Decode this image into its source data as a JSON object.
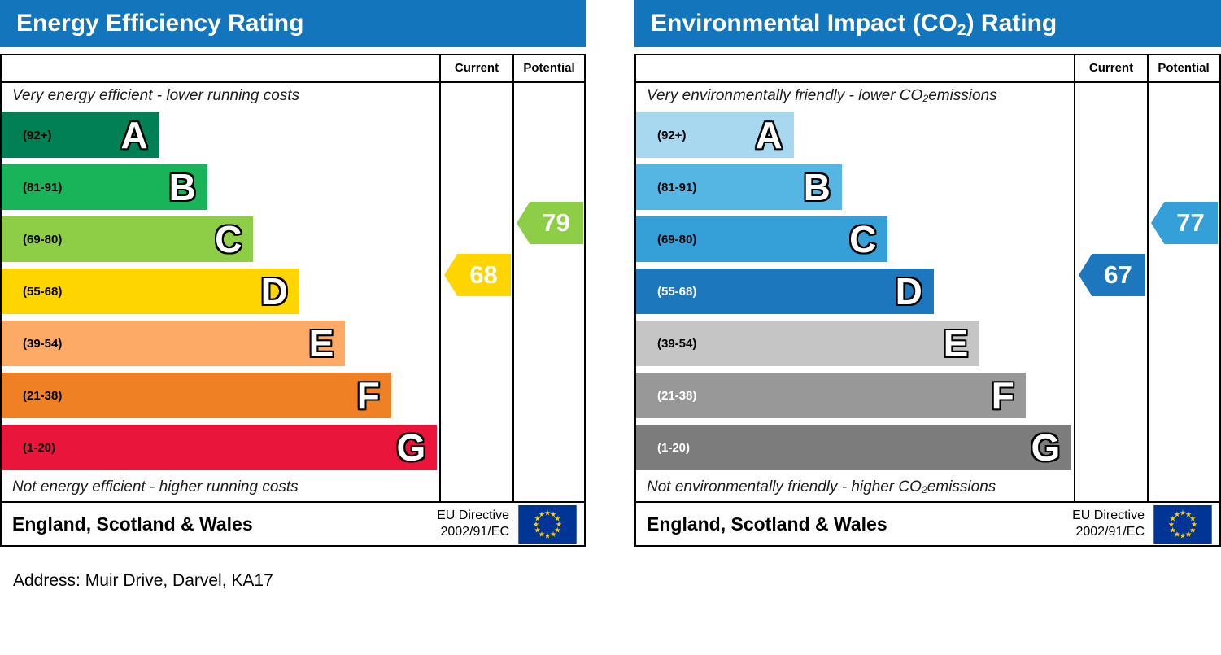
{
  "address": "Address: Muir Drive, Darvel, KA17",
  "charts": [
    {
      "title_parts": [
        "Energy Efficiency Rating",
        "",
        ""
      ],
      "columns": {
        "current": "Current",
        "potential": "Potential"
      },
      "top_caption_parts": [
        "Very energy efficient - lower running costs",
        "",
        ""
      ],
      "bottom_caption_parts": [
        "Not energy efficient - higher running costs",
        "",
        ""
      ],
      "bands": [
        {
          "range": "(92+)",
          "letter": "A",
          "color": "#008054",
          "width_pct": 36,
          "label_color": "#000000"
        },
        {
          "range": "(81-91)",
          "letter": "B",
          "color": "#19b459",
          "width_pct": 47,
          "label_color": "#000000"
        },
        {
          "range": "(69-80)",
          "letter": "C",
          "color": "#8dce46",
          "width_pct": 57.5,
          "label_color": "#000000"
        },
        {
          "range": "(55-68)",
          "letter": "D",
          "color": "#ffd500",
          "width_pct": 68,
          "label_color": "#000000"
        },
        {
          "range": "(39-54)",
          "letter": "E",
          "color": "#fcaa65",
          "width_pct": 78.5,
          "label_color": "#000000"
        },
        {
          "range": "(21-38)",
          "letter": "F",
          "color": "#ef8023",
          "width_pct": 89,
          "label_color": "#000000"
        },
        {
          "range": "(1-20)",
          "letter": "G",
          "color": "#e9153b",
          "width_pct": 99.5,
          "label_color": "#000000"
        }
      ],
      "current": {
        "value": 68,
        "band_index": 3,
        "color": "#ffd500"
      },
      "potential": {
        "value": 79,
        "band_index": 2,
        "color": "#8dce46"
      },
      "footer": {
        "region": "England, Scotland & Wales",
        "directive_line1": "EU Directive",
        "directive_line2": "2002/91/EC"
      }
    },
    {
      "title_parts": [
        "Environmental Impact (CO",
        "2",
        ") Rating"
      ],
      "columns": {
        "current": "Current",
        "potential": "Potential"
      },
      "top_caption_parts": [
        "Very environmentally friendly - lower CO",
        "2",
        " emissions"
      ],
      "bottom_caption_parts": [
        "Not environmentally friendly - higher CO",
        "2",
        " emissions"
      ],
      "bands": [
        {
          "range": "(92+)",
          "letter": "A",
          "color": "#a8d8f0",
          "width_pct": 36,
          "label_color": "#000000"
        },
        {
          "range": "(81-91)",
          "letter": "B",
          "color": "#56b6e3",
          "width_pct": 47,
          "label_color": "#000000"
        },
        {
          "range": "(69-80)",
          "letter": "C",
          "color": "#35a0d8",
          "width_pct": 57.5,
          "label_color": "#000000"
        },
        {
          "range": "(55-68)",
          "letter": "D",
          "color": "#1d77bc",
          "width_pct": 68,
          "label_color": "#ffffff"
        },
        {
          "range": "(39-54)",
          "letter": "E",
          "color": "#c5c5c5",
          "width_pct": 78.5,
          "label_color": "#000000"
        },
        {
          "range": "(21-38)",
          "letter": "F",
          "color": "#989898",
          "width_pct": 89,
          "label_color": "#ffffff"
        },
        {
          "range": "(1-20)",
          "letter": "G",
          "color": "#7c7c7c",
          "width_pct": 99.5,
          "label_color": "#ffffff"
        }
      ],
      "current": {
        "value": 67,
        "band_index": 3,
        "color": "#1d77bc"
      },
      "potential": {
        "value": 77,
        "band_index": 2,
        "color": "#35a0d8"
      },
      "footer": {
        "region": "England, Scotland & Wales",
        "directive_line1": "EU Directive",
        "directive_line2": "2002/91/EC"
      }
    }
  ],
  "chart_data": [
    {
      "type": "bar",
      "title": "Energy Efficiency Rating",
      "categories": [
        "A (92+)",
        "B (81-91)",
        "C (69-80)",
        "D (55-68)",
        "E (39-54)",
        "F (21-38)",
        "G (1-20)"
      ],
      "series": [
        {
          "name": "Current",
          "value": 68,
          "band": "D"
        },
        {
          "name": "Potential",
          "value": 79,
          "band": "C"
        }
      ],
      "scale": [
        1,
        100
      ],
      "top_caption": "Very energy efficient - lower running costs",
      "bottom_caption": "Not energy efficient - higher running costs",
      "region": "England, Scotland & Wales",
      "directive": "EU Directive 2002/91/EC"
    },
    {
      "type": "bar",
      "title": "Environmental Impact (CO2) Rating",
      "categories": [
        "A (92+)",
        "B (81-91)",
        "C (69-80)",
        "D (55-68)",
        "E (39-54)",
        "F (21-38)",
        "G (1-20)"
      ],
      "series": [
        {
          "name": "Current",
          "value": 67,
          "band": "D"
        },
        {
          "name": "Potential",
          "value": 77,
          "band": "C"
        }
      ],
      "scale": [
        1,
        100
      ],
      "top_caption": "Very environmentally friendly - lower CO2 emissions",
      "bottom_caption": "Not environmentally friendly - higher CO2 emissions",
      "region": "England, Scotland & Wales",
      "directive": "EU Directive 2002/91/EC"
    }
  ]
}
